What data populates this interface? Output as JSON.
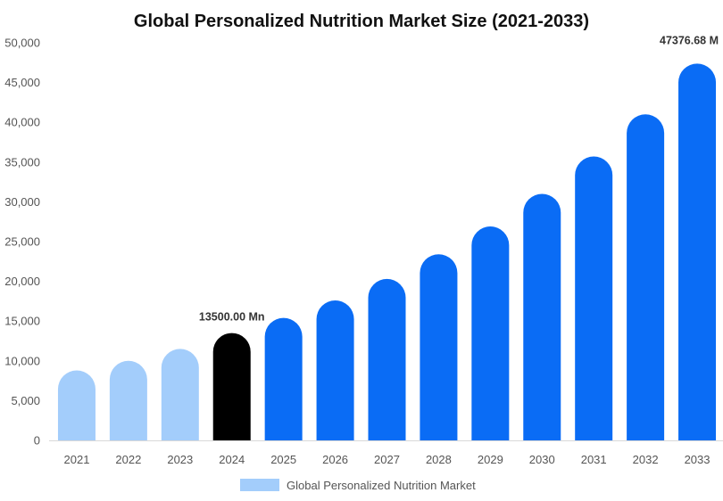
{
  "chart_data": {
    "type": "bar",
    "title": "Global Personalized Nutrition Market Size (2021-2033)",
    "xlabel": "",
    "ylabel": "",
    "ylim": [
      0,
      50000
    ],
    "yticks": [
      0,
      5000,
      10000,
      15000,
      20000,
      25000,
      30000,
      35000,
      40000,
      45000,
      50000
    ],
    "ytick_labels": [
      "0",
      "5,000",
      "10,000",
      "15,000",
      "20,000",
      "25,000",
      "30,000",
      "35,000",
      "40,000",
      "45,000",
      "50,000"
    ],
    "grid": false,
    "legend": "bottom-center",
    "categories": [
      "2021",
      "2022",
      "2023",
      "2024",
      "2025",
      "2026",
      "2027",
      "2028",
      "2029",
      "2030",
      "2031",
      "2032",
      "2033"
    ],
    "series": [
      {
        "name": "Global Personalized Nutrition Market",
        "values": [
          8800,
          10000,
          11500,
          13500,
          15400,
          17600,
          20300,
          23400,
          26900,
          31000,
          35700,
          41000,
          47376.68
        ]
      }
    ],
    "bar_colors": [
      "#a3cdfb",
      "#a3cdfb",
      "#a3cdfb",
      "#000000",
      "#0a6cf5",
      "#0a6cf5",
      "#0a6cf5",
      "#0a6cf5",
      "#0a6cf5",
      "#0a6cf5",
      "#0a6cf5",
      "#0a6cf5",
      "#0a6cf5"
    ],
    "legend_color": "#a3cdfb",
    "data_labels": [
      {
        "category": "2024",
        "text": "13500.00 Mn"
      },
      {
        "category": "2033",
        "text": "47376.68 M"
      }
    ]
  }
}
